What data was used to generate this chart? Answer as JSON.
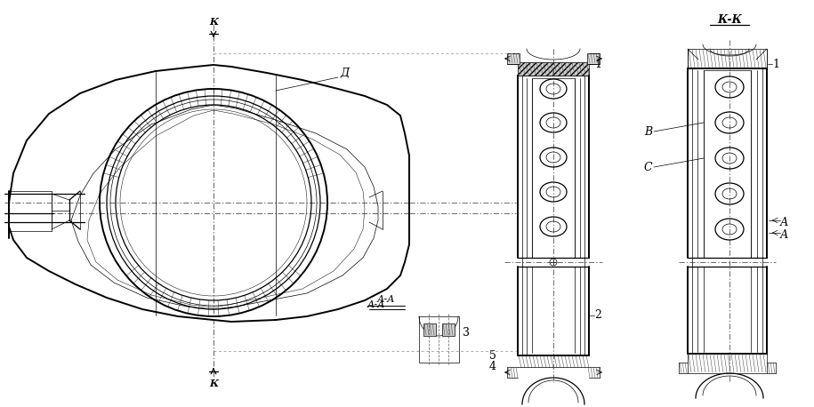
{
  "bg_color": "#ffffff",
  "line_color": "#000000",
  "figsize": [
    9.15,
    4.58
  ],
  "dpi": 100,
  "labels": {
    "K_top": "К",
    "K_bottom": "К",
    "D_label": "Д",
    "AA_label": "А-А",
    "KK_label": "К-К",
    "num1": "1",
    "num2": "2",
    "num3": "3",
    "num4": "4",
    "num5": "5",
    "B_label": "В",
    "C_label": "С",
    "A_label": "А"
  }
}
